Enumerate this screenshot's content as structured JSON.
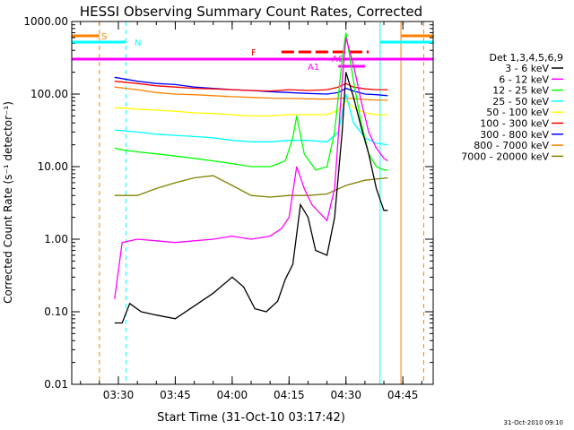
{
  "chart_data": {
    "type": "line",
    "title": "HESSI Observing Summary Count Rates, Corrected",
    "xlabel": "Start Time (31-Oct-10 03:17:42)",
    "ylabel": "Corrected Count Rate (s⁻¹ detector⁻¹)",
    "footer": "31-Oct-2010 09:10",
    "yscale": "log",
    "xlim": [
      "03:17:42",
      "04:53:00"
    ],
    "ylim": [
      0.01,
      1000
    ],
    "x_ticks": [
      "03:30",
      "03:45",
      "04:00",
      "04:15",
      "04:30",
      "04:45"
    ],
    "y_ticks": [
      "0.01",
      "0.10",
      "1.00",
      "10.00",
      "100.00",
      "1000.00"
    ],
    "legend_title": "Det 1,3,4,5,6,9",
    "legend_position": "right",
    "series": [
      {
        "name": "3 - 6 keV",
        "color": "#000000",
        "x": [
          "03:29",
          "03:31",
          "03:33",
          "03:36",
          "03:40",
          "03:45",
          "03:50",
          "03:55",
          "04:00",
          "04:03",
          "04:06",
          "04:09",
          "04:12",
          "04:14",
          "04:16",
          "04:18",
          "04:20",
          "04:22",
          "04:25",
          "04:27",
          "04:29",
          "04:30",
          "04:32",
          "04:34",
          "04:36",
          "04:38",
          "04:40",
          "04:41"
        ],
        "values": [
          0.07,
          0.07,
          0.13,
          0.1,
          0.09,
          0.08,
          0.12,
          0.18,
          0.3,
          0.22,
          0.11,
          0.1,
          0.14,
          0.28,
          0.45,
          3,
          2,
          0.7,
          0.6,
          2,
          30,
          200,
          90,
          35,
          15,
          5,
          2.5,
          2.5
        ]
      },
      {
        "name": "6 - 12 keV",
        "color": "#ff00ff",
        "x": [
          "03:29",
          "03:31",
          "03:35",
          "03:40",
          "03:45",
          "03:50",
          "03:55",
          "04:00",
          "04:05",
          "04:10",
          "04:13",
          "04:15",
          "04:17",
          "04:19",
          "04:21",
          "04:25",
          "04:27",
          "04:29",
          "04:30",
          "04:32",
          "04:34",
          "04:36",
          "04:38",
          "04:40",
          "04:41"
        ],
        "values": [
          0.15,
          0.9,
          1,
          0.95,
          0.9,
          0.95,
          1,
          1.1,
          1,
          1.1,
          1.4,
          2,
          10,
          5,
          3,
          1.8,
          5,
          150,
          600,
          250,
          80,
          30,
          18,
          13,
          12
        ]
      },
      {
        "name": "12 - 25 keV",
        "color": "#00ff00",
        "x": [
          "03:29",
          "03:31",
          "03:35",
          "03:40",
          "03:45",
          "03:50",
          "03:55",
          "04:00",
          "04:05",
          "04:10",
          "04:14",
          "04:16",
          "04:17",
          "04:19",
          "04:22",
          "04:25",
          "04:27",
          "04:29",
          "04:30",
          "04:32",
          "04:34",
          "04:36",
          "04:38",
          "04:40",
          "04:41"
        ],
        "values": [
          18,
          17,
          16,
          15,
          14,
          13,
          12,
          11,
          10,
          10,
          12,
          25,
          50,
          15,
          9,
          10,
          30,
          300,
          700,
          150,
          40,
          15,
          10,
          9,
          9
        ]
      },
      {
        "name": "25 - 50 keV",
        "color": "#00ffff",
        "x": [
          "03:29",
          "03:35",
          "03:40",
          "03:45",
          "03:50",
          "03:55",
          "04:00",
          "04:05",
          "04:10",
          "04:15",
          "04:20",
          "04:25",
          "04:28",
          "04:30",
          "04:32",
          "04:35",
          "04:38",
          "04:41"
        ],
        "values": [
          32,
          30,
          28,
          27,
          26,
          25,
          23,
          22,
          22,
          23,
          23,
          22,
          30,
          100,
          40,
          25,
          21,
          20
        ]
      },
      {
        "name": "50 - 100 keV",
        "color": "#ffff00",
        "x": [
          "03:29",
          "03:35",
          "03:40",
          "03:45",
          "03:50",
          "03:55",
          "04:00",
          "04:05",
          "04:10",
          "04:15",
          "04:20",
          "04:25",
          "04:28",
          "04:30",
          "04:32",
          "04:35",
          "04:38",
          "04:41"
        ],
        "values": [
          65,
          62,
          60,
          58,
          55,
          54,
          52,
          50,
          50,
          52,
          52,
          52,
          60,
          80,
          65,
          55,
          52,
          52
        ]
      },
      {
        "name": "100 - 300 keV",
        "color": "#ff0000",
        "x": [
          "03:29",
          "03:35",
          "03:40",
          "03:45",
          "03:50",
          "03:55",
          "04:00",
          "04:05",
          "04:10",
          "04:15",
          "04:20",
          "04:25",
          "04:28",
          "04:30",
          "04:32",
          "04:35",
          "04:38",
          "04:41"
        ],
        "values": [
          150,
          140,
          130,
          125,
          120,
          118,
          115,
          112,
          110,
          115,
          112,
          115,
          125,
          140,
          125,
          118,
          115,
          115
        ]
      },
      {
        "name": "300 - 800 keV",
        "color": "#0000ff",
        "x": [
          "03:29",
          "03:35",
          "03:40",
          "03:45",
          "03:50",
          "03:55",
          "04:00",
          "04:05",
          "04:10",
          "04:15",
          "04:20",
          "04:25",
          "04:28",
          "04:30",
          "04:32",
          "04:35",
          "04:38",
          "04:41"
        ],
        "values": [
          170,
          150,
          140,
          135,
          125,
          120,
          115,
          112,
          108,
          105,
          102,
          100,
          105,
          120,
          110,
          100,
          98,
          95
        ]
      },
      {
        "name": "800 - 7000 keV",
        "color": "#ff8000",
        "x": [
          "03:29",
          "03:35",
          "03:40",
          "03:45",
          "03:50",
          "03:55",
          "04:00",
          "04:05",
          "04:10",
          "04:15",
          "04:20",
          "04:25",
          "04:30",
          "04:35",
          "04:41"
        ],
        "values": [
          125,
          115,
          105,
          100,
          98,
          95,
          92,
          90,
          88,
          87,
          86,
          85,
          88,
          84,
          82
        ]
      },
      {
        "name": "7000 - 20000 keV",
        "color": "#808000",
        "x": [
          "03:29",
          "03:35",
          "03:40",
          "03:45",
          "03:50",
          "03:55",
          "04:00",
          "04:05",
          "04:10",
          "04:15",
          "04:20",
          "04:25",
          "04:30",
          "04:35",
          "04:41"
        ],
        "values": [
          4,
          4,
          5,
          6,
          7,
          7.5,
          5.5,
          4,
          3.8,
          4,
          4,
          4.2,
          5.5,
          6.5,
          7
        ]
      }
    ],
    "annotations": {
      "S": {
        "label": "S",
        "color": "#ff8000",
        "x_start": "03:17:42",
        "x_end": "03:25:00"
      },
      "N": {
        "label": "N",
        "color": "#00ffff",
        "x_start": "03:17:42",
        "x_end": "03:32:00"
      },
      "A1": {
        "label": "A1",
        "color": "#ff00ff",
        "x_start": "04:28:00",
        "x_end": "04:35:00"
      },
      "A0": {
        "label": "A0",
        "color": "#ff00ff",
        "x_start": "03:17:42",
        "x_end": "04:53:00"
      },
      "F": {
        "label": "F",
        "color": "#ff0000",
        "x_start": "04:13:00",
        "x_end": "04:36:00"
      }
    },
    "vertical_markers": [
      {
        "x": "03:25:00",
        "color": "#ff8000",
        "style": "dashed"
      },
      {
        "x": "03:32:00",
        "color": "#00ffff",
        "style": "dashed"
      },
      {
        "x": "04:39:00",
        "color": "#00ffff",
        "style": "solid"
      },
      {
        "x": "04:44:30",
        "color": "#ff8000",
        "style": "solid"
      },
      {
        "x": "04:50:30",
        "color": "#ff8000",
        "style": "dashed"
      }
    ]
  }
}
